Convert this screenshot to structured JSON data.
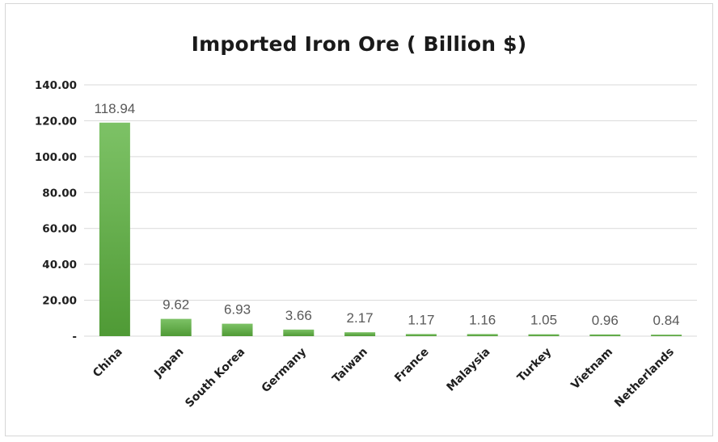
{
  "chart_data": {
    "type": "bar",
    "title": "Imported Iron Ore ( Billion $)",
    "xlabel": "",
    "ylabel": "",
    "ylim": [
      0,
      140
    ],
    "yticks": [
      0,
      20,
      40,
      60,
      80,
      100,
      120,
      140
    ],
    "ytick_labels": [
      "-",
      "20.00",
      "40.00",
      "60.00",
      "80.00",
      "100.00",
      "120.00",
      "140.00"
    ],
    "categories": [
      "China",
      "Japan",
      "South Korea",
      "Germany",
      "Taiwan",
      "France",
      "Malaysia",
      "Turkey",
      "Vietnam",
      "Netherlands"
    ],
    "values": [
      118.94,
      9.62,
      6.93,
      3.66,
      2.17,
      1.17,
      1.16,
      1.05,
      0.96,
      0.84
    ],
    "data_labels": [
      "118.94",
      "9.62",
      "6.93",
      "3.66",
      "2.17",
      "1.17",
      "1.16",
      "1.05",
      "0.96",
      "0.84"
    ],
    "grid": true,
    "legend": "none",
    "bar_color_top": "#7dc266",
    "bar_color_bottom": "#4f9a35"
  }
}
